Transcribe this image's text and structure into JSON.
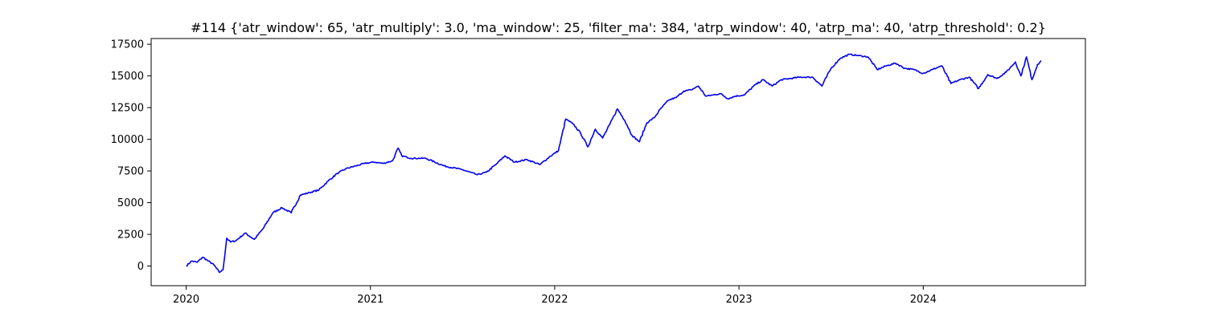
{
  "chart_data": {
    "type": "line",
    "title": "#114 {'atr_window': 65, 'atr_multiply': 3.0, 'ma_window': 25, 'filter_ma': 384, 'atrp_window': 40, 'atrp_ma': 40, 'atrp_threshold': 0.2}",
    "xlabel": "",
    "ylabel": "",
    "xlim": [
      2019.81,
      2024.88
    ],
    "ylim": [
      -1550,
      17950
    ],
    "grid": false,
    "legend": "none",
    "x_ticks": [
      {
        "value": 2020,
        "label": "2020"
      },
      {
        "value": 2021,
        "label": "2021"
      },
      {
        "value": 2022,
        "label": "2022"
      },
      {
        "value": 2023,
        "label": "2023"
      },
      {
        "value": 2024,
        "label": "2024"
      }
    ],
    "y_ticks": [
      {
        "value": 0,
        "label": "0"
      },
      {
        "value": 2500,
        "label": "2500"
      },
      {
        "value": 5000,
        "label": "5000"
      },
      {
        "value": 7500,
        "label": "7500"
      },
      {
        "value": 10000,
        "label": "10000"
      },
      {
        "value": 12500,
        "label": "12500"
      },
      {
        "value": 15000,
        "label": "15000"
      },
      {
        "value": 17500,
        "label": "17500"
      }
    ],
    "series": [
      {
        "color": "#0000ee",
        "x": [
          2020.0,
          2020.03,
          2020.06,
          2020.09,
          2020.12,
          2020.15,
          2020.18,
          2020.2,
          2020.22,
          2020.24,
          2020.27,
          2020.32,
          2020.37,
          2020.42,
          2020.47,
          2020.52,
          2020.57,
          2020.62,
          2020.67,
          2020.72,
          2020.77,
          2020.82,
          2020.87,
          2020.92,
          2020.97,
          2021.02,
          2021.07,
          2021.12,
          2021.15,
          2021.17,
          2021.22,
          2021.3,
          2021.4,
          2021.5,
          2021.58,
          2021.63,
          2021.68,
          2021.73,
          2021.78,
          2021.85,
          2021.92,
          2021.97,
          2022.02,
          2022.06,
          2022.1,
          2022.14,
          2022.18,
          2022.22,
          2022.26,
          2022.3,
          2022.34,
          2022.38,
          2022.42,
          2022.46,
          2022.5,
          2022.54,
          2022.58,
          2022.62,
          2022.66,
          2022.7,
          2022.74,
          2022.78,
          2022.82,
          2022.86,
          2022.9,
          2022.94,
          2022.98,
          2023.03,
          2023.08,
          2023.13,
          2023.18,
          2023.23,
          2023.28,
          2023.33,
          2023.4,
          2023.45,
          2023.5,
          2023.55,
          2023.6,
          2023.65,
          2023.7,
          2023.75,
          2023.8,
          2023.85,
          2023.9,
          2023.95,
          2024.0,
          2024.05,
          2024.1,
          2024.15,
          2024.2,
          2024.25,
          2024.3,
          2024.35,
          2024.4,
          2024.45,
          2024.5,
          2024.53,
          2024.56,
          2024.59,
          2024.62,
          2024.64
        ],
        "y": [
          0,
          400,
          300,
          700,
          400,
          100,
          -500,
          -300,
          2200,
          1900,
          2000,
          2600,
          2100,
          3000,
          4200,
          4600,
          4200,
          5600,
          5800,
          6000,
          6700,
          7300,
          7700,
          7900,
          8100,
          8200,
          8100,
          8300,
          9300,
          8700,
          8500,
          8500,
          7900,
          7600,
          7200,
          7400,
          8000,
          8700,
          8200,
          8400,
          8000,
          8600,
          9100,
          11600,
          11200,
          10500,
          9400,
          10800,
          10100,
          11200,
          12400,
          11500,
          10300,
          9800,
          11300,
          11700,
          12500,
          13100,
          13300,
          13800,
          13900,
          14200,
          13400,
          13500,
          13600,
          13200,
          13400,
          13500,
          14200,
          14700,
          14200,
          14700,
          14800,
          14900,
          14900,
          14200,
          15600,
          16400,
          16700,
          16600,
          16500,
          15500,
          15800,
          16000,
          15600,
          15500,
          15200,
          15500,
          15800,
          14400,
          14700,
          14900,
          14000,
          15100,
          14800,
          15300,
          16100,
          15000,
          16500,
          14700,
          15900,
          16200
        ]
      }
    ]
  }
}
